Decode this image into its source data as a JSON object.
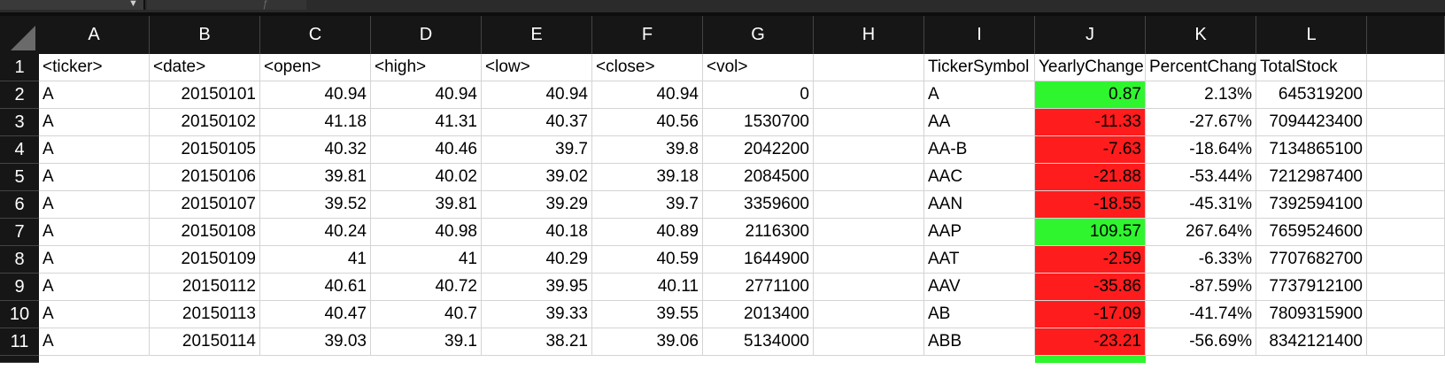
{
  "columns": [
    "A",
    "B",
    "C",
    "D",
    "E",
    "F",
    "G",
    "H",
    "I",
    "J",
    "K",
    "L"
  ],
  "rows": [
    {
      "num": "1",
      "cells": [
        "<ticker>",
        "<date>",
        "<open>",
        "<high>",
        "<low>",
        "<close>",
        "<vol>",
        "",
        "TickerSymbol",
        "YearlyChange",
        "PercentChange",
        "TotalStock"
      ],
      "status": ""
    },
    {
      "num": "2",
      "cells": [
        "A",
        "20150101",
        "40.94",
        "40.94",
        "40.94",
        "40.94",
        "0",
        "",
        "A",
        "0.87",
        "2.13%",
        "645319200"
      ],
      "status": "positive"
    },
    {
      "num": "3",
      "cells": [
        "A",
        "20150102",
        "41.18",
        "41.31",
        "40.37",
        "40.56",
        "1530700",
        "",
        "AA",
        "-11.33",
        "-27.67%",
        "7094423400"
      ],
      "status": "negative"
    },
    {
      "num": "4",
      "cells": [
        "A",
        "20150105",
        "40.32",
        "40.46",
        "39.7",
        "39.8",
        "2042200",
        "",
        "AA-B",
        "-7.63",
        "-18.64%",
        "7134865100"
      ],
      "status": "negative"
    },
    {
      "num": "5",
      "cells": [
        "A",
        "20150106",
        "39.81",
        "40.02",
        "39.02",
        "39.18",
        "2084500",
        "",
        "AAC",
        "-21.88",
        "-53.44%",
        "7212987400"
      ],
      "status": "negative"
    },
    {
      "num": "6",
      "cells": [
        "A",
        "20150107",
        "39.52",
        "39.81",
        "39.29",
        "39.7",
        "3359600",
        "",
        "AAN",
        "-18.55",
        "-45.31%",
        "7392594100"
      ],
      "status": "negative"
    },
    {
      "num": "7",
      "cells": [
        "A",
        "20150108",
        "40.24",
        "40.98",
        "40.18",
        "40.89",
        "2116300",
        "",
        "AAP",
        "109.57",
        "267.64%",
        "7659524600"
      ],
      "status": "positive"
    },
    {
      "num": "8",
      "cells": [
        "A",
        "20150109",
        "41",
        "41",
        "40.29",
        "40.59",
        "1644900",
        "",
        "AAT",
        "-2.59",
        "-6.33%",
        "7707682700"
      ],
      "status": "negative"
    },
    {
      "num": "9",
      "cells": [
        "A",
        "20150112",
        "40.61",
        "40.72",
        "39.95",
        "40.11",
        "2771100",
        "",
        "AAV",
        "-35.86",
        "-87.59%",
        "7737912100"
      ],
      "status": "negative"
    },
    {
      "num": "10",
      "cells": [
        "A",
        "20150113",
        "40.47",
        "40.7",
        "39.33",
        "39.55",
        "2013400",
        "",
        "AB",
        "-17.09",
        "-41.74%",
        "7809315900"
      ],
      "status": "negative"
    },
    {
      "num": "11",
      "cells": [
        "A",
        "20150114",
        "39.03",
        "39.1",
        "38.21",
        "39.06",
        "5134000",
        "",
        "ABB",
        "-23.21",
        "-56.69%",
        "8342121400"
      ],
      "status": "negative"
    }
  ],
  "colors": {
    "positive": "#2ff52f",
    "negative": "#ff1c1c",
    "header_bg": "#161616"
  }
}
